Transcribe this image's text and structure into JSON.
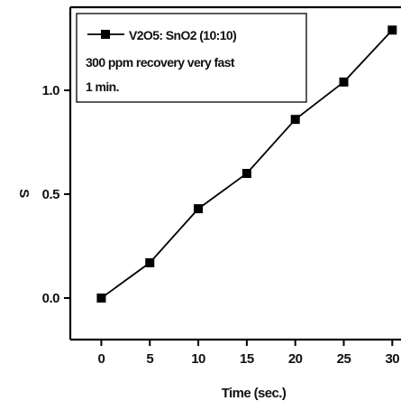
{
  "chart_data": {
    "type": "line",
    "xlabel": "Time (sec.)",
    "ylabel": "S",
    "x": [
      0,
      5,
      10,
      15,
      20,
      25,
      30
    ],
    "series": [
      {
        "name": "V2O5: SnO2 (10:10)",
        "values": [
          0.0,
          0.17,
          0.43,
          0.6,
          0.86,
          1.04,
          1.29
        ]
      }
    ],
    "xticks": [
      "0",
      "5",
      "10",
      "15",
      "20",
      "25",
      "30"
    ],
    "yticks": [
      "0.0",
      "0.5",
      "1.0"
    ],
    "xlim": [
      -3.2,
      30.9
    ],
    "ylim": [
      -0.2,
      1.4
    ],
    "legend_position": "top-left",
    "legend_notes": [
      "300 ppm recovery very fast",
      "1 min."
    ],
    "line_color": "#000000",
    "marker": "square"
  }
}
